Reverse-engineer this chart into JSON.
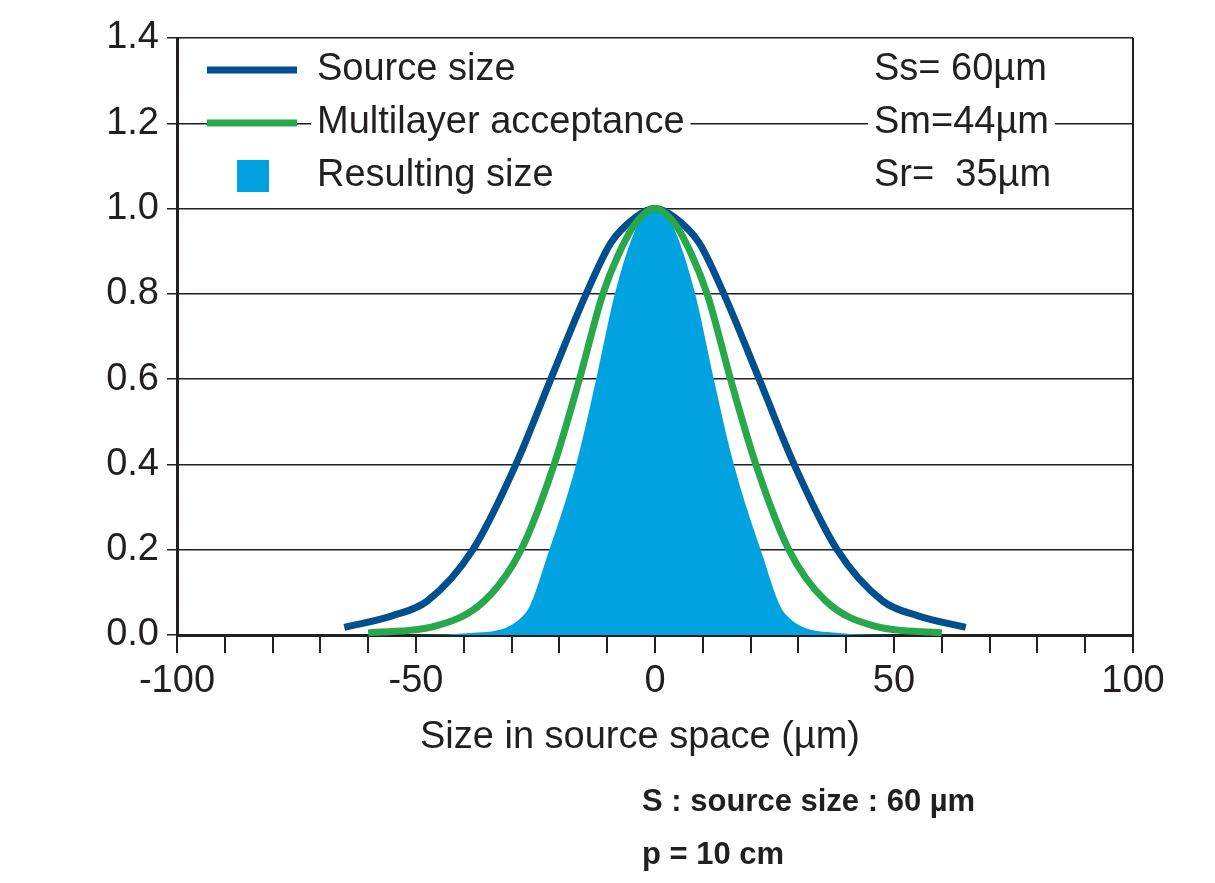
{
  "chart_data": {
    "type": "line",
    "xlabel": "Size in source space (µm)",
    "series": [
      {
        "name": "Source size",
        "type": "line",
        "color": "#004f8f",
        "x": [
          -65,
          -55,
          -47.6,
          -38.1,
          -29.1,
          -21.8,
          -14.4,
          -9.2,
          -4,
          0,
          4,
          9.2,
          14.4,
          21.8,
          29.1,
          38.1,
          47.6,
          55,
          65
        ],
        "values": [
          0.018,
          0.045,
          0.08,
          0.2,
          0.4,
          0.6,
          0.8,
          0.92,
          0.98,
          1.0,
          0.98,
          0.92,
          0.8,
          0.6,
          0.4,
          0.2,
          0.08,
          0.045,
          0.018
        ]
      },
      {
        "name": "Multilayer acceptance",
        "type": "line",
        "color": "#27a84a",
        "x": [
          -60,
          -46.2,
          -35.7,
          -28,
          -21.1,
          -15.8,
          -10.9,
          -6,
          -3,
          0,
          3,
          6,
          10.9,
          15.8,
          21.1,
          28,
          35.7,
          46.2,
          60
        ],
        "values": [
          0.005,
          0.02,
          0.08,
          0.2,
          0.4,
          0.6,
          0.8,
          0.93,
          0.98,
          1.0,
          0.98,
          0.93,
          0.8,
          0.6,
          0.4,
          0.2,
          0.08,
          0.02,
          0.005
        ]
      },
      {
        "name": "Resulting size",
        "type": "area",
        "color": "#00a3df",
        "x": [
          -100,
          -50,
          -38,
          -27.2,
          -22.1,
          -16.5,
          -12.3,
          -8.4,
          -4.5,
          -2,
          0,
          2,
          4.5,
          8.4,
          12.3,
          16.5,
          22.1,
          27.2,
          38,
          50,
          100
        ],
        "values": [
          0,
          0,
          0.005,
          0.05,
          0.2,
          0.4,
          0.6,
          0.8,
          0.94,
          0.99,
          1.0,
          0.99,
          0.94,
          0.8,
          0.6,
          0.4,
          0.2,
          0.05,
          0.005,
          0,
          0
        ]
      }
    ],
    "xlim": [
      -100,
      100
    ],
    "xticks": [
      -100,
      {
        "value": -90,
        "label": null
      },
      {
        "value": -80,
        "label": null
      },
      {
        "value": -70,
        "label": null
      },
      {
        "value": -60,
        "label": null
      },
      -50,
      {
        "value": -40,
        "label": null
      },
      {
        "value": -30,
        "label": null
      },
      {
        "value": -20,
        "label": null
      },
      {
        "value": -10,
        "label": null
      },
      0,
      {
        "value": 10,
        "label": null
      },
      {
        "value": 20,
        "label": null
      },
      {
        "value": 30,
        "label": null
      },
      {
        "value": 40,
        "label": null
      },
      50,
      {
        "value": 60,
        "label": null
      },
      {
        "value": 70,
        "label": null
      },
      {
        "value": 80,
        "label": null
      },
      {
        "value": 90,
        "label": null
      },
      100
    ],
    "ylim": [
      0,
      1.4
    ],
    "yticks": [
      {
        "value": 0,
        "label": "0.0"
      },
      {
        "value": 0.2,
        "label": "0.2"
      },
      {
        "value": 0.4,
        "label": "0.4"
      },
      {
        "value": 0.6,
        "label": "0.6"
      },
      {
        "value": 0.8,
        "label": "0.8"
      },
      {
        "value": 1,
        "label": "1.0"
      },
      {
        "value": 1.2,
        "label": "1.2"
      },
      {
        "value": 1.4,
        "label": "1.4"
      }
    ],
    "grid": "y",
    "legend": "top left",
    "marker": "none",
    "line_style": "solid",
    "annotations": [
      "Ss= 60µm",
      "Sm=44µm",
      "Sr=  35µm",
      "S : source size : 60 µm",
      "p = 10 cm"
    ]
  }
}
